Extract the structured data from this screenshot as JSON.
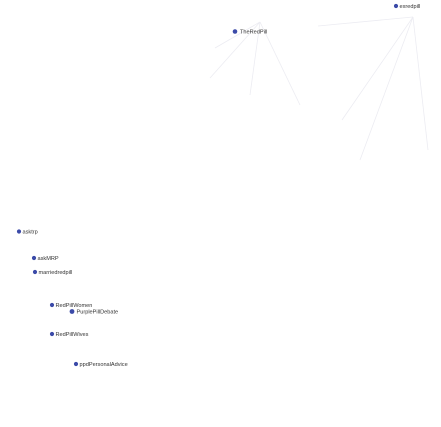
{
  "graph": {
    "node_color": "#3b4aa8",
    "edge_color": "#ececf2",
    "nodes": [
      {
        "id": "exredpill",
        "label": "exredpill"
      },
      {
        "id": "TheRedPill",
        "label": "TheRedPill"
      },
      {
        "id": "asktrp",
        "label": "asktrp"
      },
      {
        "id": "askMRP",
        "label": "askMRP"
      },
      {
        "id": "marriedredpill",
        "label": "marriedredpill"
      },
      {
        "id": "RedPillWomen",
        "label": "RedPillWomen"
      },
      {
        "id": "PurplePillDebate",
        "label": "PurplePillDebate"
      },
      {
        "id": "RedPillWives",
        "label": "RedPillWives"
      },
      {
        "id": "ppdPersonalAdvice",
        "label": "ppdPersonalAdvice"
      }
    ]
  }
}
